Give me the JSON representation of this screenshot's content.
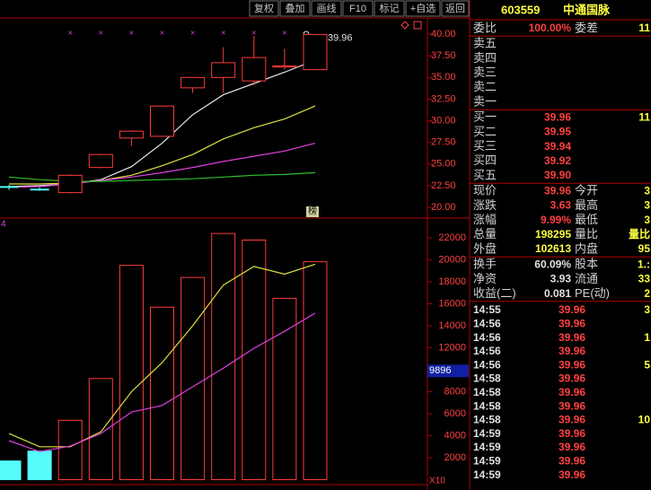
{
  "toolbar": {
    "buttons": [
      "复权",
      "叠加",
      "画线",
      "F10",
      "标记",
      "+自选",
      "返回"
    ]
  },
  "chart_data": [
    {
      "type": "candlestick",
      "open": [
        22.4,
        22.1,
        21.7,
        24.6,
        28.0,
        28.2,
        33.8,
        35.0,
        34.6,
        36.2,
        35.9
      ],
      "high": [
        22.6,
        22.3,
        23.8,
        26.2,
        28.9,
        31.7,
        35.0,
        38.5,
        39.8,
        38.3,
        39.96
      ],
      "low": [
        22.0,
        21.9,
        21.6,
        24.5,
        27.1,
        28.2,
        33.2,
        33.2,
        34.1,
        35.9,
        35.9
      ],
      "close": [
        22.3,
        22.0,
        23.7,
        26.1,
        28.8,
        31.7,
        35.0,
        36.7,
        37.3,
        36.33,
        39.96
      ],
      "up_color": "#ff3c3c",
      "down_color": "#54fcfc",
      "lines": [
        {
          "color": "#e8e8e8",
          "values": [
            22.4,
            22.5,
            22.7,
            23.2,
            24.7,
            27.4,
            30.7,
            33.0,
            34.3,
            35.6,
            37.0
          ]
        },
        {
          "color": "#e0e040",
          "values": [
            22.7,
            22.7,
            22.8,
            23.1,
            23.7,
            24.8,
            26.1,
            27.9,
            29.2,
            30.2,
            31.7
          ]
        },
        {
          "color": "#e040e0",
          "values": [
            22.3,
            22.4,
            22.7,
            23.1,
            23.5,
            24.0,
            24.6,
            25.3,
            25.9,
            26.5,
            27.4
          ]
        },
        {
          "color": "#30c030",
          "values": [
            23.5,
            23.2,
            23.0,
            23.0,
            23.1,
            23.2,
            23.3,
            23.5,
            23.7,
            23.8,
            24.0
          ]
        }
      ],
      "ylim": [
        18.76,
        41.87
      ],
      "yticks": [
        {
          "value": 20,
          "label": "20.00"
        },
        {
          "value": 22.5,
          "label": "22.50"
        },
        {
          "value": 25,
          "label": "25.00"
        },
        {
          "value": 27.5,
          "label": "27.50"
        },
        {
          "value": 30,
          "label": "30.00"
        },
        {
          "value": 32.5,
          "label": "32.50"
        },
        {
          "value": 35,
          "label": "35.00"
        },
        {
          "value": 37.5,
          "label": "37.50"
        },
        {
          "value": 40,
          "label": "40.00"
        }
      ],
      "high_label": 39.96,
      "event_mark": "×",
      "tag": "榜"
    },
    {
      "type": "bar",
      "values": [
        1700,
        2600,
        5400,
        9200,
        19500,
        15700,
        18400,
        22400,
        21800,
        16500,
        19830
      ],
      "lines": [
        {
          "color": "#e0e040",
          "values": [
            4200,
            3000,
            3000,
            4350,
            8000,
            10650,
            14000,
            17700,
            19400,
            18700,
            19600
          ]
        },
        {
          "color": "#e040e0",
          "values": [
            3550,
            2550,
            3050,
            4200,
            6150,
            6750,
            8450,
            10150,
            11950,
            13500,
            15150
          ]
        }
      ],
      "ylim": [
        0,
        23800
      ],
      "yticks": [
        2000,
        4000,
        6000,
        8000,
        10000,
        12000,
        14000,
        16000,
        18000,
        20000,
        22000
      ],
      "cursor_value": 9896,
      "panel_label": "4",
      "multiplier": "X10"
    }
  ],
  "quote_panel": {
    "code": "603559",
    "name": "中通国脉",
    "sections": [
      [
        [
          "委比",
          "100.00%",
          "委差",
          "11"
        ]
      ],
      [
        [
          "卖五"
        ],
        [
          "卖四"
        ],
        [
          "卖三"
        ],
        [
          "卖二"
        ],
        [
          "卖一"
        ]
      ],
      [
        [
          "买一",
          "39.96",
          "11"
        ],
        [
          "买二",
          "39.95"
        ],
        [
          "买三",
          "39.94"
        ],
        [
          "买四",
          "39.92"
        ],
        [
          "买五",
          "39.90"
        ]
      ],
      [
        [
          "现价",
          "39.96",
          "今开",
          "3"
        ],
        [
          "涨跌",
          "3.63",
          "最高",
          "3"
        ],
        [
          "涨幅",
          "9.99%",
          "最低",
          "3"
        ],
        [
          "总量",
          "198295",
          "量比"
        ],
        [
          "外盘",
          "102613",
          "内盘",
          "95"
        ]
      ],
      [
        [
          "换手",
          "60.09%",
          "股本",
          "1.:"
        ],
        [
          "净资",
          "3.93",
          "流通",
          "33"
        ],
        [
          "收益(二)",
          "0.081",
          "PE(动)",
          "2"
        ]
      ]
    ],
    "trades": [
      {
        "time": "14:55",
        "price": "39.96",
        "vol": "3"
      },
      {
        "time": "14:56",
        "price": "39.96"
      },
      {
        "time": "14:56",
        "price": "39.96",
        "vol": "1"
      },
      {
        "time": "14:56",
        "price": "39.96"
      },
      {
        "time": "14:56",
        "price": "39.96",
        "vol": "5"
      },
      {
        "time": "14:58",
        "price": "39.96"
      },
      {
        "time": "14:58",
        "price": "39.96"
      },
      {
        "time": "14:58",
        "price": "39.96"
      },
      {
        "time": "14:58",
        "price": "39.96",
        "vol": "10"
      },
      {
        "time": "14:59",
        "price": "39.96"
      },
      {
        "time": "14:59",
        "price": "39.96"
      },
      {
        "time": "14:59",
        "price": "39.96"
      },
      {
        "time": "14:59",
        "price": "39.96"
      }
    ]
  }
}
